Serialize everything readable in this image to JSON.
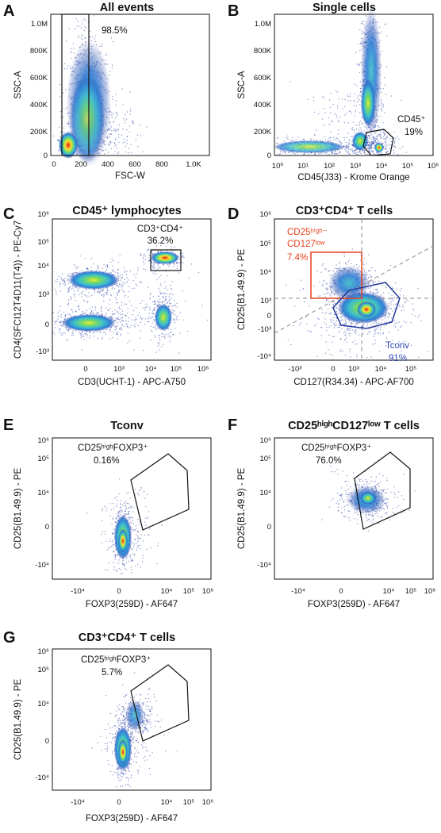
{
  "colors": {
    "gate_black": "#111111",
    "gate_red": "#e8401c",
    "gate_blue": "#243a9b",
    "label_red": "#e8401c",
    "label_blue": "#2b49b6",
    "density_scale": [
      "#23379a",
      "#2f7fd6",
      "#3fc0c9",
      "#7ddc5d",
      "#f3e83a",
      "#f08a23",
      "#d7211e"
    ]
  },
  "chart_data": [
    {
      "panel": "A",
      "type": "scatter",
      "title": "All events",
      "xlabel": "FSC-W",
      "ylabel": "SSC-A",
      "x_scale": "linear",
      "y_scale": "linear",
      "xlim": [
        0,
        1000
      ],
      "ylim": [
        0,
        1050
      ],
      "x_ticks": [
        "0",
        "200",
        "400",
        "600",
        "800",
        "1.0K"
      ],
      "y_ticks": [
        "0",
        "200K",
        "400K",
        "600K",
        "800K",
        "1.0M"
      ],
      "gates": [
        {
          "type": "rectangle",
          "x_range": [
            60,
            230
          ],
          "y_range": [
            0,
            1050
          ],
          "label": "98.5%"
        }
      ],
      "populations": [
        {
          "center_x": 150,
          "center_y": 150,
          "spread_x": 70,
          "spread_y": 180
        },
        {
          "center_x": 90,
          "center_y": 40,
          "spread_x": 25,
          "spread_y": 40
        }
      ]
    },
    {
      "panel": "B",
      "type": "scatter",
      "title": "Single cells",
      "xlabel": "CD45(J33) - Krome Orange",
      "ylabel": "SSC-A",
      "x_scale": "log",
      "y_scale": "linear",
      "xlim": [
        1,
        1000000
      ],
      "ylim": [
        0,
        1050
      ],
      "x_ticks": [
        "10⁰",
        "10¹",
        "10²",
        "10³",
        "10⁴",
        "10⁵",
        "10⁶"
      ],
      "y_ticks": [
        "0",
        "200K",
        "400K",
        "600K",
        "800K",
        "1.0M"
      ],
      "gates": [
        {
          "type": "polygon",
          "label": "CD45⁺",
          "value_label": "19%"
        }
      ],
      "populations": [
        {
          "center_x": 2000,
          "center_y": 450,
          "note": "vertical band"
        },
        {
          "center_x": 6000,
          "center_y": 60
        },
        {
          "center_x": 200,
          "center_y": 50
        }
      ]
    },
    {
      "panel": "C",
      "type": "scatter",
      "title": "CD45⁺ lymphocytes",
      "xlabel": "CD3(UCHT-1) - APC-A750",
      "ylabel": "CD4(SFCI12T4D11(T4)) - PE-Cy7",
      "x_scale": "biexponential",
      "y_scale": "biexponential",
      "x_ticks": [
        "0",
        "10³",
        "10⁴",
        "10⁵",
        "10⁶"
      ],
      "y_ticks": [
        "10⁶",
        "10⁵",
        "10⁴",
        "10³",
        "0",
        "-10³"
      ],
      "gates": [
        {
          "type": "rectangle",
          "label": "CD3⁺CD4⁺",
          "value_label": "36.2%"
        }
      ],
      "populations": [
        {
          "name_hint": "CD3-CD4+",
          "center_x": 0,
          "center_y": 2000
        },
        {
          "name_hint": "CD3-CD4-",
          "center_x": 0,
          "center_y": 0
        },
        {
          "name_hint": "CD3+CD4+",
          "center_x": 40000,
          "center_y": 25000
        },
        {
          "name_hint": "CD3+CD4-",
          "center_x": 30000,
          "center_y": 0
        }
      ]
    },
    {
      "panel": "D",
      "type": "scatter",
      "title": "CD3⁺CD4⁺ T cells",
      "xlabel": "CD127(R34.34) - APC-AF700",
      "ylabel": "CD25(B1.49.9) - PE",
      "x_scale": "biexponential",
      "y_scale": "biexponential",
      "x_ticks": [
        "-10³",
        "0",
        "10³",
        "10⁴",
        "10⁵"
      ],
      "y_ticks": [
        "10⁶",
        "10⁵",
        "10⁴",
        "10³",
        "0",
        "-10³",
        "-10⁴"
      ],
      "gates": [
        {
          "type": "rectangle",
          "color": "red",
          "label_lines": [
            "CD25ʰⁱᵍʰ⁻",
            "CD127ˡᵒʷ"
          ],
          "value_label": "7.4%"
        },
        {
          "type": "polygon",
          "color": "blue",
          "label": "Tconv",
          "value_label": "91%"
        }
      ],
      "populations": [
        {
          "center_x": 1500,
          "center_y": 200
        }
      ]
    },
    {
      "panel": "E",
      "type": "scatter",
      "title": "Tconv",
      "xlabel": "FOXP3(259D) - AF647",
      "ylabel": "CD25(B1.49.9) - PE",
      "x_scale": "biexponential",
      "y_scale": "biexponential",
      "x_ticks": [
        "-10⁴",
        "0",
        "10⁴",
        "10⁵",
        "10⁶"
      ],
      "y_ticks": [
        "10⁶",
        "10⁵",
        "10⁴",
        "0",
        "-10⁴"
      ],
      "gates": [
        {
          "type": "polygon",
          "label": "CD25ʰⁱᵍʰFOXP3⁺",
          "value_label": "0.16%"
        }
      ],
      "populations": [
        {
          "center_x": 500,
          "center_y": 300
        }
      ]
    },
    {
      "panel": "F",
      "type": "scatter",
      "title": "CD25ʰⁱᵍʰCD127ˡᵒʷ T cells",
      "xlabel": "FOXP3(259D) - AF647",
      "ylabel": "CD25(B1.49.9) - PE",
      "x_scale": "biexponential",
      "y_scale": "biexponential",
      "x_ticks": [
        "-10⁴",
        "0",
        "10⁴",
        "10⁵",
        "10⁶"
      ],
      "y_ticks": [
        "10⁶",
        "10⁵",
        "10⁴",
        "0",
        "-10⁴"
      ],
      "gates": [
        {
          "type": "polygon",
          "label": "CD25ʰⁱᵍʰFOXP3⁺",
          "value_label": "76.0%"
        }
      ],
      "populations": [
        {
          "center_x": 5000,
          "center_y": 5000
        }
      ]
    },
    {
      "panel": "G",
      "type": "scatter",
      "title": "CD3⁺CD4⁺ T cells",
      "xlabel": "FOXP3(259D) - AF647",
      "ylabel": "CD25(B1.49.9) - PE",
      "x_scale": "biexponential",
      "y_scale": "biexponential",
      "x_ticks": [
        "-10⁴",
        "0",
        "10⁴",
        "10⁵",
        "10⁶"
      ],
      "y_ticks": [
        "10⁶",
        "10⁵",
        "10⁴",
        "0",
        "-10⁴"
      ],
      "gates": [
        {
          "type": "polygon",
          "label": "CD25ʰⁱᵍʰFOXP3⁺",
          "value_label": "5.7%"
        }
      ],
      "populations": [
        {
          "center_x": 500,
          "center_y": 500,
          "note": "diagonal tail toward gate"
        }
      ]
    }
  ]
}
